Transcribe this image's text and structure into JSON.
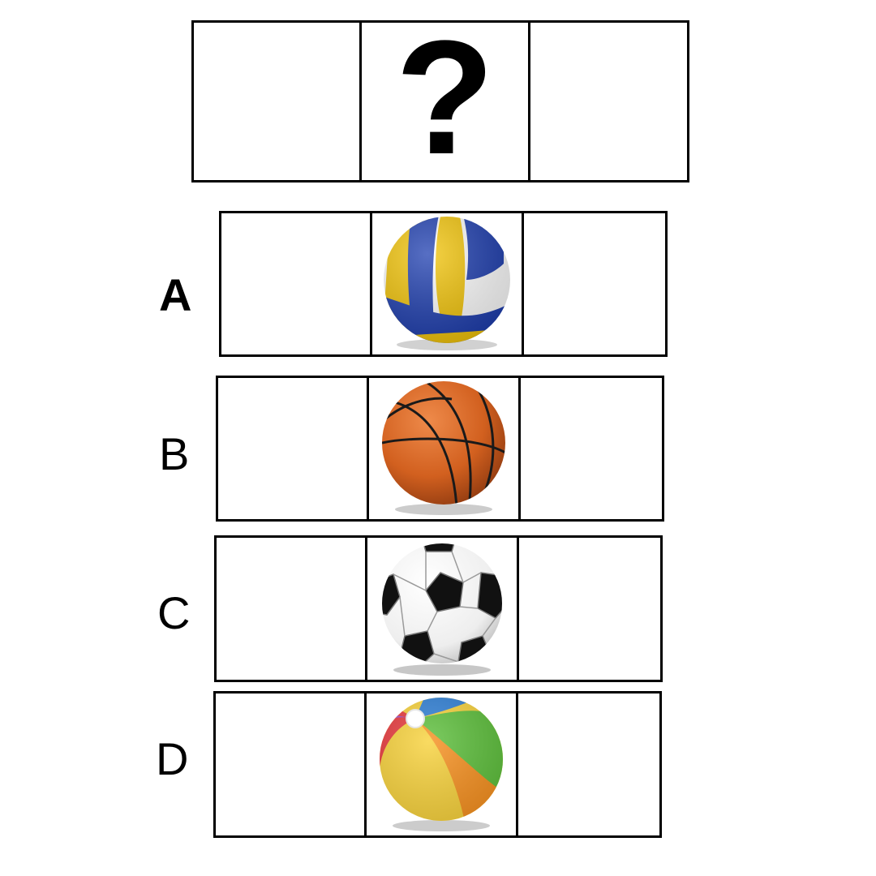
{
  "question": {
    "mark": "?"
  },
  "options": [
    {
      "label": "A",
      "image": "volleyball-icon",
      "colors": {
        "blue": "#1f3fb0",
        "yellow": "#f3c50a",
        "white": "#ffffff"
      }
    },
    {
      "label": "B",
      "image": "basketball-icon",
      "colors": {
        "orange": "#d2601f",
        "seam": "#1a1a1a"
      }
    },
    {
      "label": "C",
      "image": "soccer-ball-icon",
      "colors": {
        "black": "#111111",
        "white": "#f7f7f7"
      }
    },
    {
      "label": "D",
      "image": "beach-ball-icon",
      "colors": {
        "red": "#e8373b",
        "yellow": "#f8d23a",
        "green": "#5cbf3a",
        "blue": "#2e7fd6",
        "purple": "#9a4fcf",
        "orange": "#f7901e"
      }
    }
  ]
}
